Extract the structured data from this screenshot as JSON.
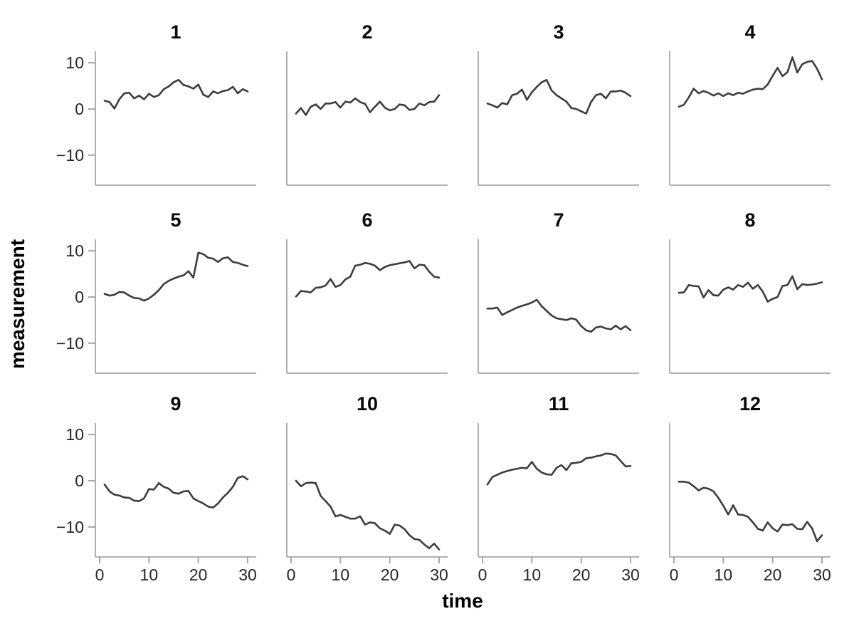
{
  "figure": {
    "background": "#ffffff",
    "line_color": "#3d3d3d",
    "axis_color": "#b0b0b0",
    "tick_color": "#a6a6a6",
    "title_color": "#0a0a0a",
    "tick_label_color": "#262626"
  },
  "chart_data": {
    "type": "line",
    "title": "",
    "xlabel": "time",
    "ylabel": "measurement",
    "facet_layout": {
      "rows": 3,
      "cols": 4
    },
    "grid": false,
    "legend": "none",
    "xlim": [
      0,
      31
    ],
    "ylim": [
      -16.5,
      12.5
    ],
    "x_ticks": [
      0,
      10,
      20,
      30
    ],
    "x_tick_labels": [
      "0",
      "10",
      "20",
      "30"
    ],
    "y_ticks": [
      10,
      0,
      -10
    ],
    "y_tick_labels": [
      "10",
      "0",
      "−10"
    ],
    "x": [
      1,
      2,
      3,
      4,
      5,
      6,
      7,
      8,
      9,
      10,
      11,
      12,
      13,
      14,
      15,
      16,
      17,
      18,
      19,
      20,
      21,
      22,
      23,
      24,
      25,
      26,
      27,
      28,
      29,
      30
    ],
    "facets": [
      {
        "label": "1",
        "values": [
          1.8,
          1.5,
          0.1,
          2.1,
          3.4,
          3.5,
          2.3,
          2.9,
          2.1,
          3.3,
          2.6,
          3.0,
          4.3,
          4.9,
          5.8,
          6.3,
          5.2,
          4.9,
          4.4,
          5.3,
          3.1,
          2.6,
          3.8,
          3.4,
          3.9,
          4.1,
          4.8,
          3.4,
          4.3,
          3.8
        ]
      },
      {
        "label": "2",
        "values": [
          -1.0,
          0.2,
          -1.3,
          0.5,
          1.0,
          0.0,
          1.2,
          1.2,
          1.5,
          0.3,
          1.6,
          1.4,
          2.3,
          1.5,
          1.1,
          -0.7,
          0.5,
          1.6,
          0.3,
          -0.3,
          0.0,
          1.0,
          0.8,
          -0.2,
          0.0,
          1.2,
          0.8,
          1.5,
          1.6,
          3.0
        ]
      },
      {
        "label": "3",
        "values": [
          1.2,
          0.8,
          0.3,
          1.3,
          1.0,
          3.0,
          3.3,
          4.2,
          2.0,
          3.6,
          4.8,
          5.8,
          6.3,
          4.0,
          3.0,
          2.3,
          1.6,
          0.2,
          0.0,
          -0.5,
          -1.0,
          1.5,
          3.0,
          3.3,
          2.3,
          3.8,
          3.8,
          4.0,
          3.5,
          2.8
        ]
      },
      {
        "label": "4",
        "values": [
          0.5,
          0.9,
          2.5,
          4.4,
          3.4,
          3.9,
          3.5,
          2.9,
          3.4,
          2.8,
          3.4,
          3.0,
          3.5,
          3.3,
          3.8,
          4.2,
          4.4,
          4.3,
          5.3,
          7.2,
          8.9,
          7.1,
          8.0,
          11.2,
          7.9,
          9.7,
          10.2,
          10.4,
          8.7,
          6.4
        ]
      },
      {
        "label": "5",
        "values": [
          0.7,
          0.3,
          0.5,
          1.1,
          1.0,
          0.3,
          -0.2,
          -0.3,
          -0.8,
          -0.3,
          0.5,
          1.5,
          2.8,
          3.5,
          4.0,
          4.4,
          4.7,
          5.6,
          4.2,
          9.6,
          9.3,
          8.5,
          8.3,
          7.6,
          8.4,
          8.6,
          7.6,
          7.4,
          7.0,
          6.7
        ]
      },
      {
        "label": "6",
        "values": [
          0.1,
          1.3,
          1.2,
          1.0,
          2.0,
          2.1,
          2.5,
          3.9,
          2.2,
          2.6,
          3.8,
          4.4,
          6.8,
          7.0,
          7.4,
          7.2,
          6.8,
          5.8,
          6.5,
          6.9,
          7.1,
          7.3,
          7.5,
          7.8,
          6.2,
          7.0,
          6.9,
          5.5,
          4.4,
          4.2
        ]
      },
      {
        "label": "7",
        "values": [
          -2.5,
          -2.5,
          -2.3,
          -3.9,
          -3.3,
          -2.8,
          -2.3,
          -1.9,
          -1.6,
          -1.2,
          -0.6,
          -2.0,
          -3.0,
          -4.0,
          -4.6,
          -4.8,
          -5.0,
          -4.6,
          -4.9,
          -6.3,
          -7.2,
          -7.5,
          -6.6,
          -6.4,
          -6.8,
          -7.0,
          -6.2,
          -7.0,
          -6.3,
          -7.2
        ]
      },
      {
        "label": "8",
        "values": [
          0.9,
          1.0,
          2.6,
          2.4,
          2.3,
          -0.1,
          1.5,
          0.4,
          0.3,
          1.6,
          2.1,
          1.6,
          2.6,
          2.2,
          3.1,
          1.8,
          2.6,
          1.2,
          -1.0,
          -0.4,
          0.0,
          2.4,
          2.6,
          4.5,
          1.7,
          2.8,
          2.6,
          2.7,
          2.9,
          3.2
        ]
      },
      {
        "label": "9",
        "values": [
          -0.8,
          -2.3,
          -3.0,
          -3.2,
          -3.6,
          -3.7,
          -4.3,
          -4.4,
          -3.8,
          -1.8,
          -1.9,
          -0.5,
          -1.3,
          -1.7,
          -2.6,
          -2.8,
          -2.3,
          -2.2,
          -3.8,
          -4.4,
          -4.9,
          -5.6,
          -5.8,
          -4.9,
          -3.6,
          -2.6,
          -1.3,
          0.6,
          1.0,
          0.3
        ]
      },
      {
        "label": "10",
        "values": [
          0.0,
          -1.2,
          -0.5,
          -0.4,
          -0.5,
          -3.3,
          -4.4,
          -5.6,
          -7.7,
          -7.4,
          -7.8,
          -8.2,
          -8.2,
          -7.7,
          -9.5,
          -9.0,
          -9.2,
          -10.3,
          -10.8,
          -11.5,
          -9.5,
          -9.7,
          -10.5,
          -11.8,
          -12.6,
          -12.8,
          -13.8,
          -14.6,
          -13.6,
          -14.9
        ]
      },
      {
        "label": "11",
        "values": [
          -0.8,
          0.8,
          1.3,
          1.8,
          2.1,
          2.4,
          2.6,
          2.8,
          2.7,
          4.1,
          2.6,
          1.8,
          1.4,
          1.3,
          2.8,
          3.4,
          2.3,
          3.8,
          3.9,
          4.1,
          4.9,
          5.0,
          5.3,
          5.5,
          5.9,
          5.8,
          5.5,
          4.3,
          3.1,
          3.2
        ]
      },
      {
        "label": "12",
        "values": [
          -0.2,
          -0.2,
          -0.4,
          -1.2,
          -2.1,
          -1.5,
          -1.7,
          -2.3,
          -3.7,
          -5.4,
          -7.3,
          -5.3,
          -7.3,
          -7.4,
          -7.8,
          -9.0,
          -10.4,
          -10.8,
          -9.0,
          -10.3,
          -11.0,
          -9.5,
          -9.6,
          -9.4,
          -10.4,
          -10.5,
          -8.9,
          -10.3,
          -13.1,
          -11.8
        ]
      }
    ]
  }
}
